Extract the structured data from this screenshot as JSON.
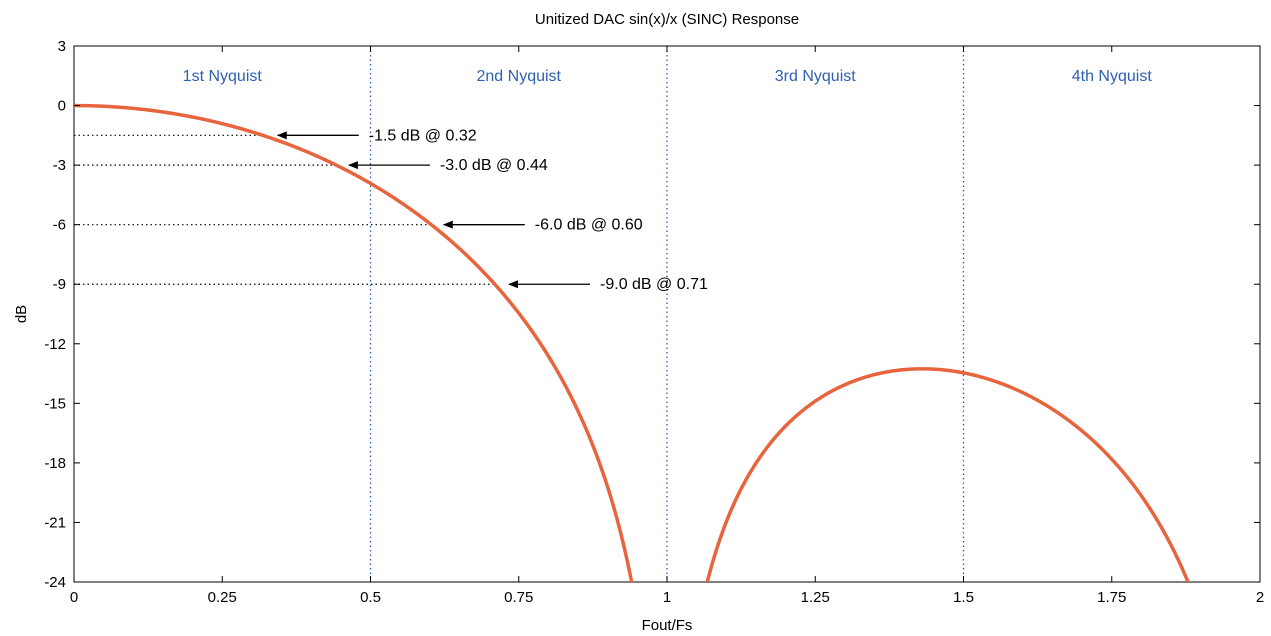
{
  "chart_data": {
    "type": "line",
    "title": "Unitized DAC sin(x)/x (SINC) Response",
    "xlabel": "Fout/Fs",
    "ylabel": "dB",
    "xlim": [
      0,
      2
    ],
    "ylim": [
      -24,
      3
    ],
    "xticks": [
      0,
      0.25,
      0.5,
      0.75,
      1,
      1.25,
      1.5,
      1.75,
      2
    ],
    "xtick_labels": [
      "0",
      "0.25",
      "0.5",
      "0.75",
      "1",
      "1.25",
      "1.5",
      "1.75",
      "2"
    ],
    "yticks": [
      3,
      0,
      -3,
      -6,
      -9,
      -12,
      -15,
      -18,
      -21,
      -24
    ],
    "ytick_labels": [
      "3",
      "0",
      "-3",
      "-6",
      "-9",
      "-12",
      "-15",
      "-18",
      "-21",
      "-24"
    ],
    "grid": false,
    "series": [
      {
        "function": "20*log10(|sin(pi*x)/(pi*x)|)",
        "color": "#e8643c"
      }
    ],
    "nyquist_zones": {
      "boundaries": [
        0.5,
        1.0,
        1.5
      ],
      "line_color": "#2f5fb0",
      "labels": [
        {
          "text": "1st Nyquist",
          "x": 0.25
        },
        {
          "text": "2nd Nyquist",
          "x": 0.75
        },
        {
          "text": "3rd Nyquist",
          "x": 1.25
        },
        {
          "text": "4th Nyquist",
          "x": 1.75
        }
      ],
      "label_color": "#2f5fb0"
    },
    "annotations": [
      {
        "text": "-1.5 dB @ 0.32",
        "x": 0.32,
        "y": -1.5
      },
      {
        "text": "-3.0 dB @ 0.44",
        "x": 0.44,
        "y": -3.0
      },
      {
        "text": "-6.0 dB @ 0.60",
        "x": 0.6,
        "y": -6.0
      },
      {
        "text": "-9.0 dB @ 0.71",
        "x": 0.71,
        "y": -9.0
      }
    ]
  }
}
